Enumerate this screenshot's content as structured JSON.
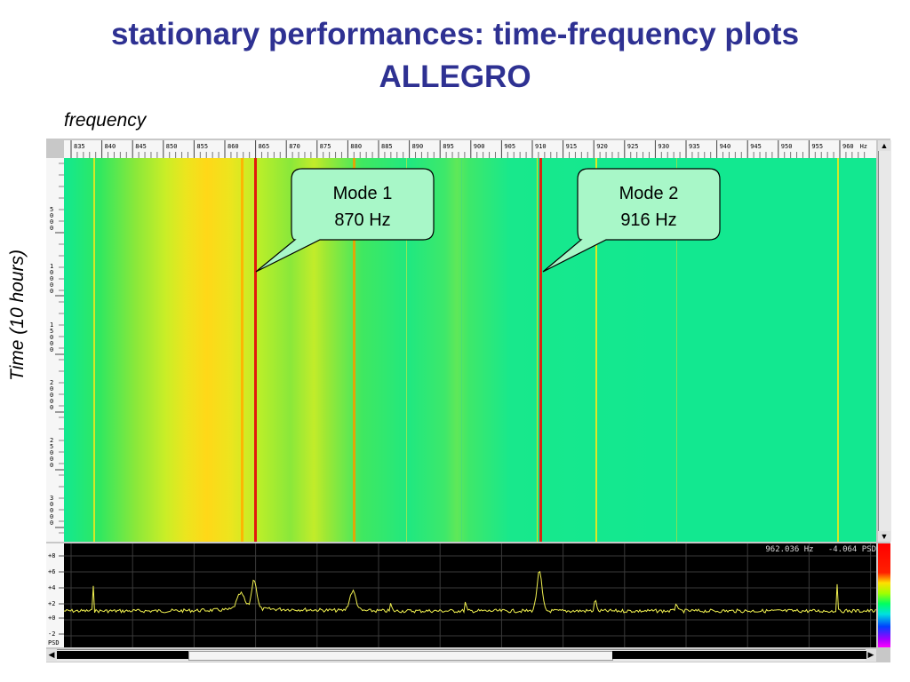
{
  "slide": {
    "title_line1": "stationary performances: time-frequency plots",
    "title_line2": "ALLEGRO",
    "x_axis_label": "frequency",
    "y_axis_label": "Time (10 hours)"
  },
  "callouts": [
    {
      "label": "Mode 1",
      "value": "870 Hz"
    },
    {
      "label": "Mode 2",
      "value": "916 Hz"
    }
  ],
  "frequency_ruler": {
    "unit": "Hz",
    "ticks": [
      "835",
      "840",
      "845",
      "850",
      "855",
      "860",
      "865",
      "870",
      "875",
      "880",
      "885",
      "890",
      "895",
      "900",
      "905",
      "910",
      "915",
      "920",
      "925",
      "930",
      "935",
      "940",
      "945",
      "950",
      "955",
      "960"
    ]
  },
  "time_ruler": {
    "ticks": [
      "5000",
      "10000",
      "15000",
      "20000",
      "25000",
      "30000"
    ]
  },
  "psd_ruler": {
    "ticks": [
      "+8",
      "+6",
      "+4",
      "+2",
      "+0",
      "-2"
    ],
    "unit": "PSD"
  },
  "psd_readout": {
    "frequency": "962.036 Hz",
    "value": "-4.064 PSD"
  },
  "scroll_icons": {
    "up": "triangle-up",
    "down": "triangle-down",
    "left": "triangle-left",
    "right": "triangle-right"
  },
  "colors": {
    "title": "#2e3192",
    "spectro_background": "#12e890",
    "line_yellow": "#f0f000",
    "line_red": "#e21a0d",
    "psd_trace": "#f0f050"
  }
}
